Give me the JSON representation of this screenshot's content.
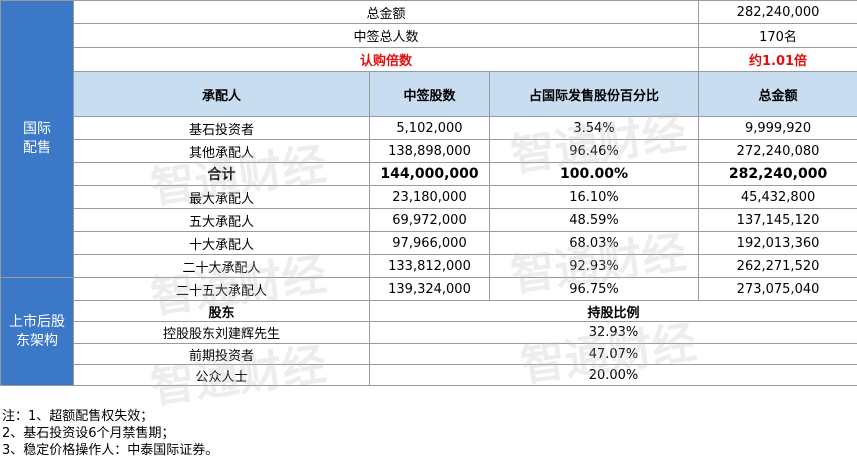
{
  "summary": {
    "total_amount_label": "总金额",
    "total_amount_value": "282,240,000",
    "successful_applicants_label": "中签总人数",
    "successful_applicants_value": "170名",
    "subscription_multiple_label": "认购倍数",
    "subscription_multiple_value": "约1.01倍"
  },
  "international": {
    "side_label_lines": [
      "国际",
      "配售"
    ],
    "headers": [
      "承配人",
      "中签股数",
      "占国际发售股份百分比",
      "总金额"
    ],
    "rows": [
      {
        "name": "基石投资者",
        "shares": "5,102,000",
        "pct": "3.54%",
        "amount": "9,999,920"
      },
      {
        "name": "其他承配人",
        "shares": "138,898,000",
        "pct": "96.46%",
        "amount": "272,240,080"
      },
      {
        "name": "合计",
        "shares": "144,000,000",
        "pct": "100.00%",
        "amount": "282,240,000"
      },
      {
        "name": "最大承配人",
        "shares": "23,180,000",
        "pct": "16.10%",
        "amount": "45,432,800"
      },
      {
        "name": "五大承配人",
        "shares": "69,972,000",
        "pct": "48.59%",
        "amount": "137,145,120"
      },
      {
        "name": "十大承配人",
        "shares": "97,966,000",
        "pct": "68.03%",
        "amount": "192,013,360"
      },
      {
        "name": "二十大承配人",
        "shares": "133,812,000",
        "pct": "92.93%",
        "amount": "262,271,520"
      },
      {
        "name": "二十五大承配人",
        "shares": "139,324,000",
        "pct": "96.75%",
        "amount": "273,075,040"
      }
    ]
  },
  "post_listing": {
    "side_label_lines": [
      "上市后股",
      "东架构"
    ],
    "headers": [
      "股东",
      "持股比例"
    ],
    "rows": [
      {
        "holder": "控股股东刘建辉先生",
        "ratio": "32.93%"
      },
      {
        "holder": "前期投资者",
        "ratio": "47.07%"
      },
      {
        "holder": "公众人士",
        "ratio": "20.00%"
      }
    ]
  },
  "notes": [
    "注：1、超额配售权失效；",
    "2、基石投资设6个月禁售期；",
    "3、稳定价格操作人：中泰国际证券。"
  ],
  "watermark_text": "智通财经",
  "colors": {
    "side_blue": "#3c78c8",
    "header_blue": "#c9ddf0",
    "highlight_red": "#e01010"
  }
}
